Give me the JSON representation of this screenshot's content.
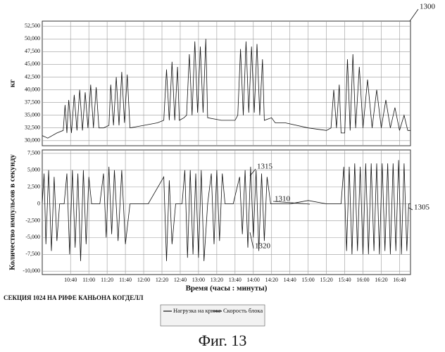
{
  "chart_data": [
    {
      "type": "line",
      "y_label": "кг",
      "xlim": [
        609,
        1012
      ],
      "ylim": [
        29000,
        53500
      ],
      "grid": true,
      "yticks": [
        {
          "value": 30000,
          "label": "30,000"
        },
        {
          "value": 32500,
          "label": "32,500"
        },
        {
          "value": 35000,
          "label": "35,000"
        },
        {
          "value": 37500,
          "label": "37,500"
        },
        {
          "value": 40000,
          "label": "40,000"
        },
        {
          "value": 42500,
          "label": "42,500"
        },
        {
          "value": 45000,
          "label": "45,000"
        },
        {
          "value": 47500,
          "label": "47,500"
        },
        {
          "value": 50000,
          "label": "50,000"
        },
        {
          "value": 52500,
          "label": "52,500"
        }
      ],
      "x": [
        609,
        615,
        625,
        632,
        634,
        636,
        638,
        641,
        644,
        647,
        650,
        653,
        656,
        659,
        662,
        665,
        668,
        671,
        676,
        682,
        684,
        687,
        690,
        693,
        696,
        699,
        702,
        705,
        720,
        735,
        742,
        745,
        748,
        751,
        754,
        757,
        759,
        764,
        767,
        770,
        773,
        776,
        779,
        782,
        785,
        788,
        790,
        805,
        820,
        823,
        826,
        829,
        832,
        835,
        838,
        841,
        844,
        847,
        850,
        852,
        860,
        864,
        875,
        900,
        920,
        925,
        928,
        931,
        934,
        936,
        940,
        943,
        946,
        949,
        952,
        956,
        960,
        965,
        970,
        975,
        980,
        985,
        990,
        995,
        1000,
        1005,
        1009,
        1012
      ],
      "series": [
        {
          "name": "Нагрузка на крюке",
          "color": "#111111",
          "values": [
            31000,
            30500,
            31500,
            32000,
            37000,
            31500,
            38000,
            31500,
            39000,
            32000,
            40000,
            32000,
            39500,
            32500,
            41000,
            32500,
            40500,
            32500,
            32500,
            33000,
            41000,
            33000,
            42500,
            33000,
            43500,
            33500,
            43000,
            32500,
            33000,
            33500,
            34000,
            44000,
            34000,
            45500,
            34000,
            44500,
            34000,
            34500,
            35000,
            47000,
            35000,
            49500,
            35500,
            48500,
            35500,
            50000,
            34500,
            34000,
            34000,
            35000,
            48000,
            35000,
            49500,
            35500,
            48500,
            35500,
            49000,
            35000,
            46000,
            34000,
            34500,
            33500,
            33500,
            32500,
            32000,
            32500,
            40000,
            32500,
            41000,
            31500,
            31500,
            46000,
            32000,
            47000,
            32500,
            44500,
            32500,
            42000,
            32500,
            40000,
            32500,
            38000,
            32500,
            36500,
            32000,
            35000,
            32000,
            32000
          ]
        }
      ]
    },
    {
      "type": "line",
      "y_label": "Количество импульсов в секунду",
      "x_label": "Время (часы : минуты)",
      "xlim": [
        609,
        1012
      ],
      "ylim": [
        -10500,
        8000
      ],
      "grid": true,
      "yticks": [
        {
          "value": -10000,
          "label": "-10,000"
        },
        {
          "value": -7500,
          "label": "-7,500"
        },
        {
          "value": -5000,
          "label": "-5,000"
        },
        {
          "value": -2500,
          "label": "-2,500"
        },
        0,
        {
          "value": 2500,
          "label": "2,500"
        },
        {
          "value": 5000,
          "label": "5,000"
        },
        {
          "value": 7500,
          "label": "7,500"
        }
      ],
      "xticks": [
        {
          "value": 640,
          "label": "10:40"
        },
        {
          "value": 660,
          "label": "11:00"
        },
        {
          "value": 680,
          "label": "11:20"
        },
        {
          "value": 700,
          "label": "11:40"
        },
        {
          "value": 720,
          "label": "12:00"
        },
        {
          "value": 740,
          "label": "12:20"
        },
        {
          "value": 760,
          "label": "12:40"
        },
        {
          "value": 780,
          "label": "13:00"
        },
        {
          "value": 800,
          "label": "13:20"
        },
        {
          "value": 820,
          "label": "13:40"
        },
        {
          "value": 840,
          "label": "14:00"
        },
        {
          "value": 860,
          "label": "14:20"
        },
        {
          "value": 880,
          "label": "14:40"
        },
        {
          "value": 900,
          "label": "15:00"
        },
        {
          "value": 920,
          "label": "15:20"
        },
        {
          "value": 940,
          "label": "15:40"
        },
        {
          "value": 960,
          "label": "16:00"
        },
        {
          "value": 980,
          "label": "16:20"
        },
        {
          "value": 1000,
          "label": "16:40"
        }
      ],
      "x": [
        609,
        611,
        613,
        616,
        619,
        622,
        625,
        628,
        633,
        636,
        639,
        642,
        645,
        648,
        651,
        654,
        657,
        660,
        663,
        672,
        676,
        679,
        682,
        685,
        688,
        692,
        696,
        700,
        705,
        725,
        742,
        745,
        748,
        751,
        755,
        762,
        765,
        768,
        771,
        774,
        777,
        780,
        783,
        786,
        790,
        794,
        797,
        800,
        803,
        806,
        809,
        818,
        825,
        828,
        831,
        834,
        837,
        840,
        843,
        846,
        849,
        852,
        855,
        859,
        880,
        900,
        920,
        936,
        939,
        942,
        945,
        948,
        951,
        954,
        957,
        960,
        963,
        966,
        969,
        972,
        975,
        978,
        981,
        984,
        987,
        990,
        993,
        996,
        999,
        1002,
        1005,
        1008,
        1010,
        1012
      ],
      "series": [
        {
          "name": "Скорость блока",
          "color": "#111111",
          "values": [
            0,
            4500,
            -6000,
            5000,
            -7000,
            4000,
            -5500,
            0,
            0,
            4500,
            -7500,
            5000,
            -6500,
            4500,
            -8500,
            5000,
            -6000,
            4000,
            0,
            0,
            4500,
            -5000,
            5500,
            -4500,
            5000,
            -5500,
            5000,
            -6000,
            0,
            0,
            4000,
            -8500,
            3500,
            -6000,
            0,
            0,
            5000,
            -8000,
            5000,
            -7500,
            4500,
            -8000,
            5000,
            -8500,
            0,
            4500,
            -6000,
            5000,
            -5500,
            4500,
            0,
            0,
            4000,
            -4500,
            5000,
            -6500,
            5500,
            -5000,
            5000,
            -7000,
            4500,
            -5500,
            4000,
            0,
            0,
            500,
            0,
            0,
            5500,
            -7000,
            5500,
            -7500,
            6000,
            -7000,
            5500,
            -7500,
            6000,
            -7500,
            6000,
            -7000,
            6000,
            -7500,
            6000,
            -7000,
            6000,
            -7500,
            6000,
            -7000,
            6500,
            -7500,
            6000,
            -7000,
            0,
            0
          ]
        }
      ]
    }
  ],
  "caption": "СЕКЦИЯ 1024 НА РИФЕ КАНЬОНА КОГДЕЛЛ",
  "annotations": [
    "1300",
    "1315",
    "1310",
    "1320",
    "1305"
  ],
  "figure_label": "Фиг. 13"
}
